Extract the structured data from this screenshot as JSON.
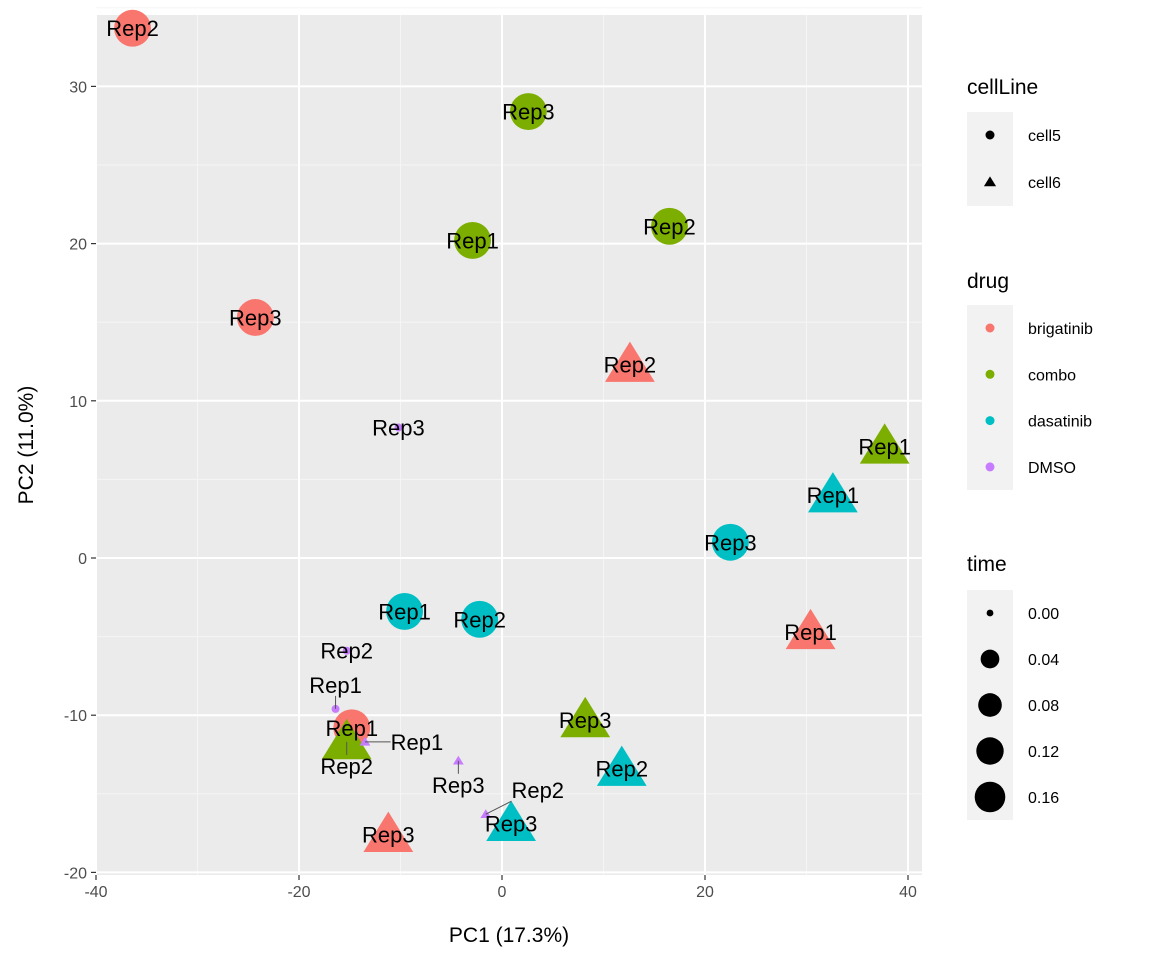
{
  "chart_data": {
    "type": "scatter",
    "xlabel": "PC1 (17.3%)",
    "ylabel": "PC2 (11.0%)",
    "xlim": [
      -40,
      41
    ],
    "ylim": [
      -20,
      34.5
    ],
    "xticks": [
      -40,
      -20,
      0,
      20,
      40
    ],
    "yticks": [
      -20,
      -10,
      0,
      10,
      20,
      30
    ],
    "grid": true,
    "legend_placement": "right",
    "colors": {
      "brigatinib": "#F8766D",
      "combo": "#7CAE00",
      "dasatinib": "#00BFC4",
      "DMSO": "#C77CFF"
    },
    "legends": {
      "cellLine": {
        "title": "cellLine",
        "items": [
          {
            "label": "cell5",
            "shape": "circle"
          },
          {
            "label": "cell6",
            "shape": "triangle"
          }
        ]
      },
      "drug": {
        "title": "drug",
        "items": [
          "brigatinib",
          "combo",
          "dasatinib",
          "DMSO"
        ]
      },
      "time": {
        "title": "time",
        "items": [
          {
            "label": "0.00",
            "value": 0
          },
          {
            "label": "0.04",
            "value": 0.04
          },
          {
            "label": "0.08",
            "value": 0.08
          },
          {
            "label": "0.12",
            "value": 0.12
          },
          {
            "label": "0.16",
            "value": 0.16
          }
        ]
      }
    },
    "points": [
      {
        "label": "Rep2",
        "x": -36.4,
        "y": 33.7,
        "drug": "brigatinib",
        "cellLine": "cell5",
        "time": 0.17
      },
      {
        "label": "Rep3",
        "x": -24.3,
        "y": 15.3,
        "drug": "brigatinib",
        "cellLine": "cell5",
        "time": 0.17
      },
      {
        "label": "Rep1",
        "x": -14.8,
        "y": -10.8,
        "drug": "brigatinib",
        "cellLine": "cell5",
        "time": 0.17
      },
      {
        "label": "Rep2",
        "x": 12.6,
        "y": 12.3,
        "drug": "brigatinib",
        "cellLine": "cell6",
        "time": 0.17
      },
      {
        "label": "Rep1",
        "x": 30.4,
        "y": -4.7,
        "drug": "brigatinib",
        "cellLine": "cell6",
        "time": 0.17
      },
      {
        "label": "Rep3",
        "x": -11.2,
        "y": -17.6,
        "drug": "brigatinib",
        "cellLine": "cell6",
        "time": 0.17
      },
      {
        "label": "Rep3",
        "x": 2.6,
        "y": 28.4,
        "drug": "combo",
        "cellLine": "cell5",
        "time": 0.17
      },
      {
        "label": "Rep1",
        "x": -2.9,
        "y": 20.2,
        "drug": "combo",
        "cellLine": "cell5",
        "time": 0.17
      },
      {
        "label": "Rep2",
        "x": 16.5,
        "y": 21.1,
        "drug": "combo",
        "cellLine": "cell5",
        "time": 0.17
      },
      {
        "label": "Rep1",
        "x": 37.7,
        "y": 7.1,
        "drug": "combo",
        "cellLine": "cell6",
        "time": 0.17
      },
      {
        "label": "Rep3",
        "x": 8.2,
        "y": -10.3,
        "drug": "combo",
        "cellLine": "cell6",
        "time": 0.17
      },
      {
        "label": "Rep2",
        "x": -15.3,
        "y": -11.7,
        "drug": "combo",
        "cellLine": "cell6",
        "time": 0.17
      },
      {
        "label": "Rep3",
        "x": 22.5,
        "y": 1.0,
        "drug": "dasatinib",
        "cellLine": "cell5",
        "time": 0.17
      },
      {
        "label": "Rep1",
        "x": -9.6,
        "y": -3.4,
        "drug": "dasatinib",
        "cellLine": "cell5",
        "time": 0.17
      },
      {
        "label": "Rep2",
        "x": -2.2,
        "y": -3.9,
        "drug": "dasatinib",
        "cellLine": "cell5",
        "time": 0.17
      },
      {
        "label": "Rep1",
        "x": 32.6,
        "y": 4.0,
        "drug": "dasatinib",
        "cellLine": "cell6",
        "time": 0.17
      },
      {
        "label": "Rep2",
        "x": 11.8,
        "y": -13.4,
        "drug": "dasatinib",
        "cellLine": "cell6",
        "time": 0.17
      },
      {
        "label": "Rep3",
        "x": 0.9,
        "y": -16.9,
        "drug": "dasatinib",
        "cellLine": "cell6",
        "time": 0.17
      },
      {
        "label": "Rep3",
        "x": -10.2,
        "y": 8.3,
        "drug": "DMSO",
        "cellLine": "cell5",
        "time": 0
      },
      {
        "label": "Rep2",
        "x": -15.3,
        "y": -5.9,
        "drug": "DMSO",
        "cellLine": "cell5",
        "time": 0
      },
      {
        "label": "Rep1",
        "x": -16.4,
        "y": -9.6,
        "drug": "DMSO",
        "cellLine": "cell5",
        "time": 0
      },
      {
        "label": "Rep1",
        "x": -13.5,
        "y": -11.7,
        "drug": "DMSO",
        "cellLine": "cell6",
        "time": 0
      },
      {
        "label": "Rep3",
        "x": -4.3,
        "y": -12.9,
        "drug": "DMSO",
        "cellLine": "cell6",
        "time": 0
      },
      {
        "label": "Rep2",
        "x": -1.6,
        "y": -16.3,
        "drug": "DMSO",
        "cellLine": "cell6",
        "time": 0
      }
    ]
  }
}
